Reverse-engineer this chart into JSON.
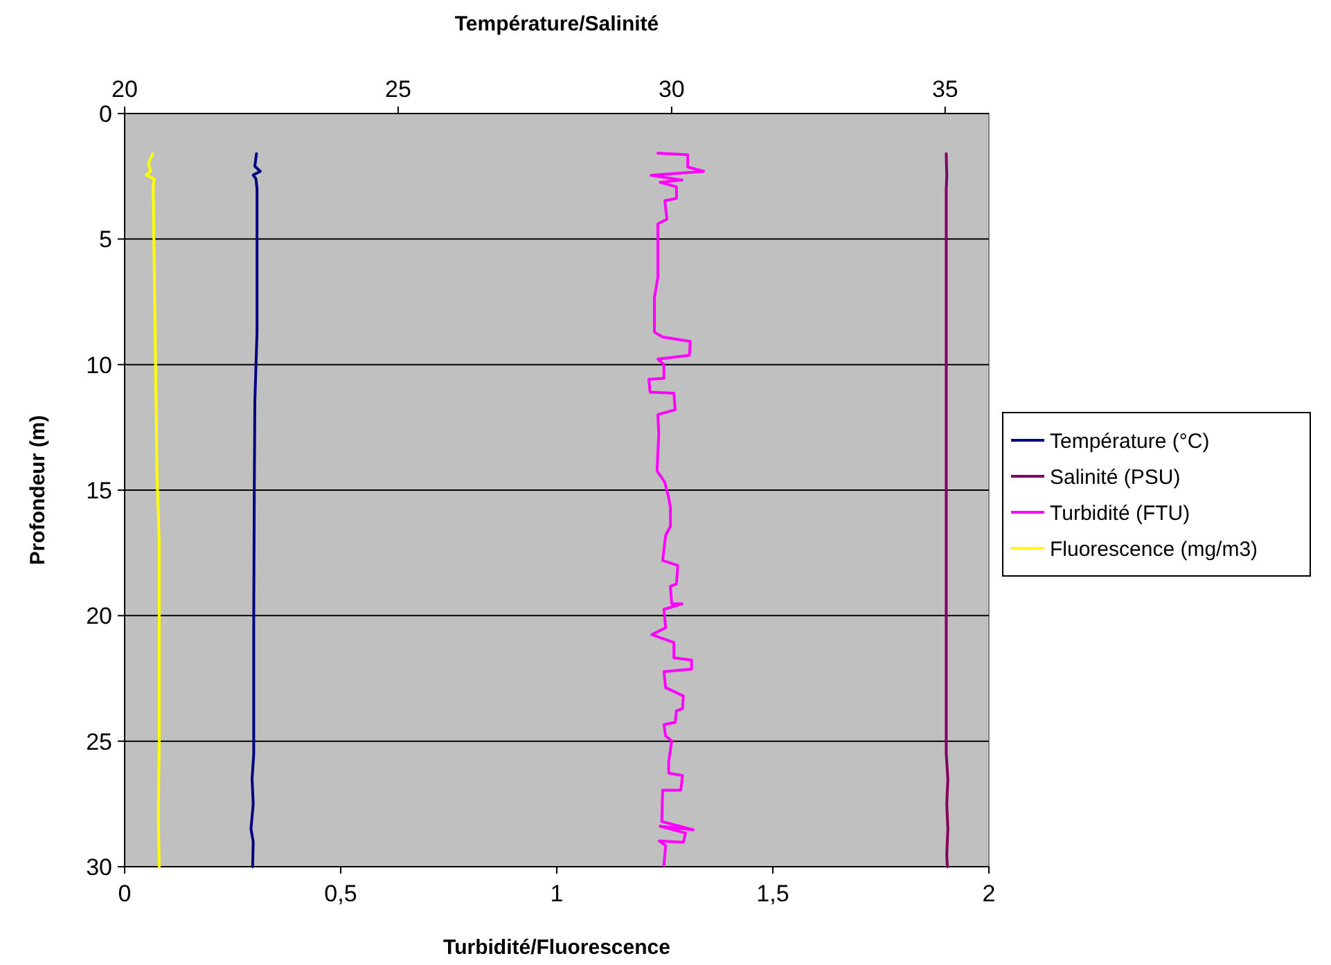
{
  "chart_data": {
    "type": "line",
    "x2label": "Température/Salinité",
    "xlabel": "Turbidité/Fluorescence",
    "ylabel": "Profondeur (m)",
    "xlim": [
      0,
      2
    ],
    "xticks": [
      0,
      {
        "value": 0.5,
        "label": "0,5"
      },
      1,
      {
        "value": 1.5,
        "label": "1,5"
      },
      2
    ],
    "x2lim": [
      20,
      35.8
    ],
    "x2ticks": [
      20,
      25,
      30,
      35
    ],
    "ylim": [
      30,
      0
    ],
    "yticks": [
      0,
      5,
      10,
      15,
      20,
      25,
      30
    ],
    "grid": "y",
    "legend": "right",
    "marker": "none",
    "line_style": "solid",
    "series": [
      {
        "name": "Température (°C)",
        "color": "#000080",
        "axis": "x2",
        "x": [
          22.41,
          22.38,
          22.48,
          22.35,
          22.4,
          22.42,
          22.42,
          22.38,
          22.37,
          22.36,
          22.36,
          22.33,
          22.35,
          22.31,
          22.35,
          22.34
        ],
        "values": [
          1.6,
          2.1,
          2.3,
          2.45,
          2.6,
          3,
          8.7,
          11.5,
          15,
          20,
          25.5,
          26.5,
          27.5,
          28.5,
          29,
          30
        ]
      },
      {
        "name": "Salinité (PSU)",
        "color": "#800060",
        "axis": "x2",
        "x": [
          35.02,
          35.03,
          35.02,
          35.02,
          35.05,
          35.03,
          35.05,
          35.03,
          35.04
        ],
        "values": [
          1.6,
          2.5,
          3,
          25.5,
          26.5,
          27.5,
          28.5,
          29.5,
          30
        ]
      },
      {
        "name": "Turbidité (FTU)",
        "color": "#ff00ff",
        "x": [
          1.234,
          1.303,
          1.303,
          1.34,
          1.218,
          1.29,
          1.239,
          1.277,
          1.277,
          1.25,
          1.255,
          1.234,
          1.234,
          1.226,
          1.226,
          1.245,
          1.309,
          1.307,
          1.234,
          1.248,
          1.248,
          1.213,
          1.216,
          1.271,
          1.274,
          1.234,
          1.236,
          1.232,
          1.25,
          1.259,
          1.263,
          1.263,
          1.252,
          1.245,
          1.28,
          1.277,
          1.263,
          1.266,
          1.29,
          1.248,
          1.252,
          1.22,
          1.271,
          1.271,
          1.312,
          1.312,
          1.248,
          1.252,
          1.293,
          1.291,
          1.277,
          1.274,
          1.248,
          1.252,
          1.266,
          1.259,
          1.259,
          1.291,
          1.287,
          1.245,
          1.243,
          1.316,
          1.239,
          1.298,
          1.293,
          1.237,
          1.252,
          1.248
        ],
        "values": [
          1.58,
          1.64,
          2.13,
          2.3,
          2.46,
          2.65,
          2.74,
          2.92,
          3.38,
          3.47,
          4.21,
          4.39,
          6.51,
          7.34,
          8.71,
          8.9,
          9.08,
          9.63,
          9.78,
          10.0,
          10.55,
          10.59,
          11.1,
          11.14,
          11.8,
          11.99,
          12.76,
          14.23,
          14.69,
          15.3,
          15.7,
          16.44,
          16.8,
          17.8,
          18.0,
          18.74,
          18.83,
          19.53,
          19.53,
          19.75,
          20.48,
          20.76,
          21.07,
          21.68,
          21.77,
          22.13,
          22.23,
          22.87,
          23.2,
          23.7,
          23.79,
          24.25,
          24.34,
          24.8,
          24.99,
          25.81,
          26.27,
          26.37,
          26.95,
          26.95,
          28.2,
          28.53,
          28.39,
          28.66,
          29.03,
          28.97,
          29.16,
          29.95
        ]
      },
      {
        "name": "Fluorescence (mg/m3)",
        "color": "#ffff00",
        "x": [
          0.065,
          0.055,
          0.06,
          0.05,
          0.068,
          0.066,
          0.07,
          0.072,
          0.075,
          0.08,
          0.08,
          0.08,
          0.078,
          0.08
        ],
        "values": [
          1.6,
          2.0,
          2.3,
          2.45,
          2.6,
          3,
          8,
          10.5,
          14.5,
          17,
          20,
          25,
          28,
          30
        ]
      }
    ]
  }
}
